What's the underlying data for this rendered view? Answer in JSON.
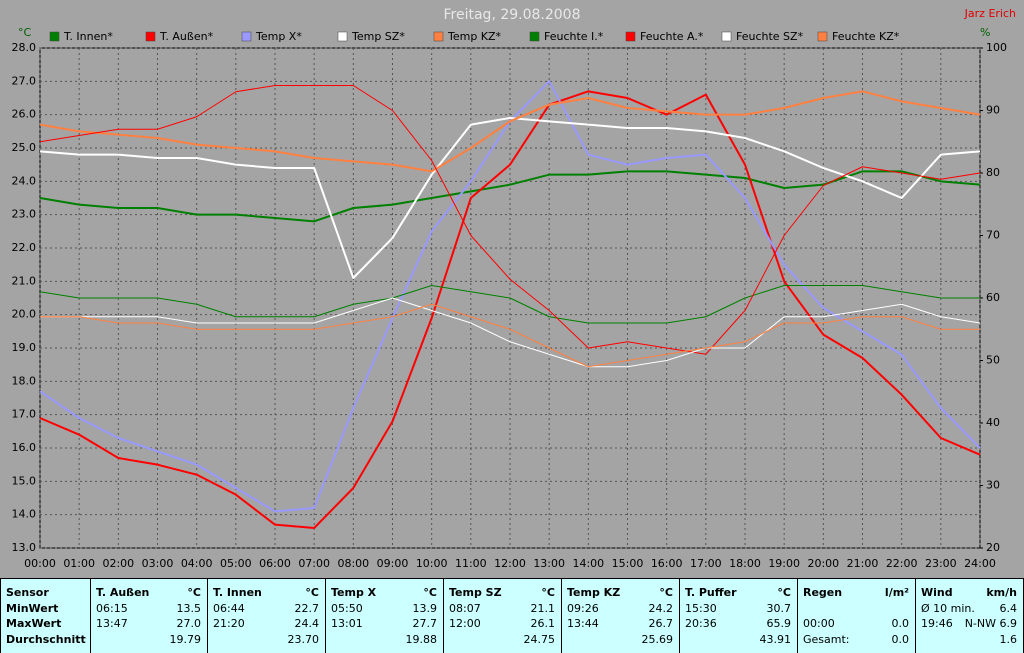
{
  "chart_data": {
    "type": "line",
    "title": "Freitag, 29.08.2008",
    "author": "Jarz Erich",
    "ylabel": "°C",
    "y2label": "%",
    "x": [
      0,
      1,
      2,
      3,
      4,
      5,
      6,
      7,
      8,
      9,
      10,
      11,
      12,
      13,
      14,
      15,
      16,
      17,
      18,
      19,
      20,
      21,
      22,
      23,
      24
    ],
    "xlim": [
      0,
      24
    ],
    "xticks": [
      {
        "value": 0,
        "label": "00:00"
      },
      {
        "value": 1,
        "label": "01:00"
      },
      {
        "value": 2,
        "label": "02:00"
      },
      {
        "value": 3,
        "label": "03:00"
      },
      {
        "value": 4,
        "label": "04:00"
      },
      {
        "value": 5,
        "label": "05:00"
      },
      {
        "value": 6,
        "label": "06:00"
      },
      {
        "value": 7,
        "label": "07:00"
      },
      {
        "value": 8,
        "label": "08:00"
      },
      {
        "value": 9,
        "label": "09:00"
      },
      {
        "value": 10,
        "label": "10:00"
      },
      {
        "value": 11,
        "label": "11:00"
      },
      {
        "value": 12,
        "label": "12:00"
      },
      {
        "value": 13,
        "label": "13:00"
      },
      {
        "value": 14,
        "label": "14:00"
      },
      {
        "value": 15,
        "label": "15:00"
      },
      {
        "value": 16,
        "label": "16:00"
      },
      {
        "value": 17,
        "label": "17:00"
      },
      {
        "value": 18,
        "label": "18:00"
      },
      {
        "value": 19,
        "label": "19:00"
      },
      {
        "value": 20,
        "label": "20:00"
      },
      {
        "value": 21,
        "label": "21:00"
      },
      {
        "value": 22,
        "label": "22:00"
      },
      {
        "value": 23,
        "label": "23:00"
      },
      {
        "value": 24,
        "label": "24:00"
      }
    ],
    "ylim": [
      13,
      28
    ],
    "yticks": [
      {
        "value": 13,
        "label": "13.0"
      },
      {
        "value": 14,
        "label": "14.0"
      },
      {
        "value": 15,
        "label": "15.0"
      },
      {
        "value": 16,
        "label": "16.0"
      },
      {
        "value": 17,
        "label": "17.0"
      },
      {
        "value": 18,
        "label": "18.0"
      },
      {
        "value": 19,
        "label": "19.0"
      },
      {
        "value": 20,
        "label": "20.0"
      },
      {
        "value": 21,
        "label": "21.0"
      },
      {
        "value": 22,
        "label": "22.0"
      },
      {
        "value": 23,
        "label": "23.0"
      },
      {
        "value": 24,
        "label": "24.0"
      },
      {
        "value": 25,
        "label": "25.0"
      },
      {
        "value": 26,
        "label": "26.0"
      },
      {
        "value": 27,
        "label": "27.0"
      },
      {
        "value": 28,
        "label": "28.0"
      }
    ],
    "y2lim": [
      20,
      100
    ],
    "y2ticks": [
      20,
      30,
      40,
      50,
      60,
      70,
      80,
      90,
      100
    ],
    "grid": true,
    "series": [
      {
        "name": "T. Innen*",
        "color": "#008000",
        "values": [
          23.5,
          23.3,
          23.2,
          23.2,
          23.0,
          23.0,
          22.9,
          22.8,
          23.2,
          23.3,
          23.5,
          23.7,
          23.9,
          24.2,
          24.2,
          24.3,
          24.3,
          24.2,
          24.1,
          23.8,
          23.9,
          24.3,
          24.3,
          24.0,
          23.9
        ]
      },
      {
        "name": "T. Außen*",
        "color": "#ff0000",
        "values": [
          16.9,
          16.4,
          15.7,
          15.5,
          15.2,
          14.6,
          13.7,
          13.6,
          14.8,
          16.8,
          19.9,
          23.5,
          24.5,
          26.3,
          26.7,
          26.5,
          26.0,
          26.6,
          24.5,
          21.0,
          19.4,
          18.7,
          17.6,
          16.3,
          15.8
        ]
      },
      {
        "name": "Temp X*",
        "color": "#9999ff",
        "values": [
          17.7,
          16.9,
          16.3,
          15.9,
          15.5,
          14.8,
          14.1,
          14.2,
          17.2,
          19.9,
          22.5,
          24.0,
          25.8,
          27.0,
          24.8,
          24.5,
          24.7,
          24.8,
          23.5,
          21.5,
          20.2,
          19.5,
          18.8,
          17.2,
          16.0
        ]
      },
      {
        "name": "Temp SZ*",
        "color": "#ffffff",
        "values": [
          24.9,
          24.8,
          24.8,
          24.7,
          24.7,
          24.5,
          24.4,
          24.4,
          21.1,
          22.3,
          24.2,
          25.7,
          25.9,
          25.8,
          25.7,
          25.6,
          25.6,
          25.5,
          25.3,
          24.9,
          24.4,
          24.0,
          23.5,
          24.8,
          24.9
        ]
      },
      {
        "name": "Temp KZ*",
        "color": "#ff8040",
        "values": [
          25.7,
          25.5,
          25.4,
          25.3,
          25.1,
          25.0,
          24.9,
          24.7,
          24.6,
          24.5,
          24.3,
          25.0,
          25.8,
          26.3,
          26.5,
          26.2,
          26.1,
          26.0,
          26.0,
          26.2,
          26.5,
          26.7,
          26.4,
          26.2,
          26.0
        ]
      },
      {
        "name": "Feuchte I.*",
        "color": "#008000",
        "axis": "y2",
        "values": [
          61,
          60,
          60,
          60,
          59,
          57,
          57,
          57,
          59,
          60,
          62,
          61,
          60,
          57,
          56,
          56,
          56,
          57,
          60,
          62,
          62,
          62,
          61,
          60,
          60
        ]
      },
      {
        "name": "Feuchte A.*",
        "color": "#ff0000",
        "axis": "y2",
        "values": [
          85,
          86,
          87,
          87,
          89,
          93,
          94,
          94,
          94,
          90,
          82,
          70,
          63,
          58,
          52,
          53,
          52,
          51,
          58,
          70,
          78,
          81,
          80,
          79,
          80
        ]
      },
      {
        "name": "Feuchte SZ*",
        "color": "#ffffff",
        "axis": "y2",
        "values": [
          57,
          57,
          57,
          57,
          56,
          56,
          56,
          56,
          58,
          60,
          58,
          56,
          53,
          51,
          49,
          49,
          50,
          52,
          52,
          57,
          57,
          58,
          59,
          57,
          56
        ]
      },
      {
        "name": "Feuchte KZ*",
        "color": "#ff8040",
        "axis": "y2",
        "values": [
          57,
          57,
          56,
          56,
          55,
          55,
          55,
          55,
          56,
          57,
          59,
          57,
          55,
          52,
          49,
          50,
          51,
          52,
          53,
          56,
          56,
          57,
          57,
          55,
          55
        ]
      }
    ]
  },
  "table": {
    "sensor_header": "Sensor",
    "row_labels": [
      "MinWert",
      "MaxWert",
      "Durchschnitt"
    ],
    "columns": [
      {
        "header": "T. Außen",
        "unit": "°C",
        "rows": [
          [
            "06:15",
            "13.5"
          ],
          [
            "13:47",
            "27.0"
          ],
          [
            null,
            "19.79"
          ]
        ]
      },
      {
        "header": "T. Innen",
        "unit": "°C",
        "rows": [
          [
            "06:44",
            "22.7"
          ],
          [
            "21:20",
            "24.4"
          ],
          [
            null,
            "23.70"
          ]
        ]
      },
      {
        "header": "Temp X",
        "unit": "°C",
        "rows": [
          [
            "05:50",
            "13.9"
          ],
          [
            "13:01",
            "27.7"
          ],
          [
            null,
            "19.88"
          ]
        ]
      },
      {
        "header": "Temp SZ",
        "unit": "°C",
        "rows": [
          [
            "08:07",
            "21.1"
          ],
          [
            "12:00",
            "26.1"
          ],
          [
            null,
            "24.75"
          ]
        ]
      },
      {
        "header": "Temp KZ",
        "unit": "°C",
        "rows": [
          [
            "09:26",
            "24.2"
          ],
          [
            "13:44",
            "26.7"
          ],
          [
            null,
            "25.69"
          ]
        ]
      },
      {
        "header": "T. Puffer",
        "unit": "°C",
        "rows": [
          [
            "15:30",
            "30.7"
          ],
          [
            "20:36",
            "65.9"
          ],
          [
            null,
            "43.91"
          ]
        ]
      },
      {
        "header": "Regen",
        "unit": "l/m²",
        "rows": [
          [
            null,
            null
          ],
          [
            "00:00",
            "0.0"
          ],
          [
            "Gesamt:",
            "0.0"
          ]
        ]
      },
      {
        "header": "Wind",
        "unit": "km/h",
        "rows": [
          [
            "Ø 10 min.",
            "6.4"
          ],
          [
            "19:46",
            "N-NW 6.9"
          ],
          [
            null,
            "1.6"
          ]
        ]
      }
    ]
  }
}
